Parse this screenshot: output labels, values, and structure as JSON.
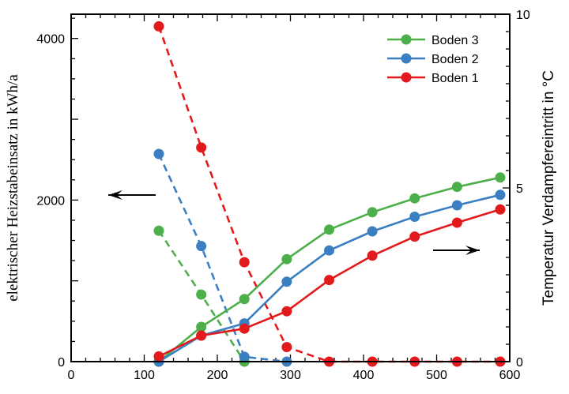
{
  "chart_data": {
    "type": "line",
    "xlim": [
      0,
      600
    ],
    "x_ticks": [
      0,
      100,
      200,
      300,
      400,
      500,
      600
    ],
    "y_left": {
      "label": "elektrischer Heizstabeinsatz in kWh/a",
      "lim": [
        0,
        4300
      ],
      "ticks": [
        0,
        2000,
        4000
      ]
    },
    "y_right": {
      "label": "Temperatur Verdampfereintritt in °C",
      "lim": [
        0,
        10
      ],
      "ticks": [
        0,
        5,
        10
      ]
    },
    "legend": {
      "position": "top-right",
      "entries": [
        "Boden 3",
        "Boden 2",
        "Boden 1"
      ]
    },
    "colors": {
      "Boden 1": "#e31a1c",
      "Boden 2": "#3a7fc1",
      "Boden 3": "#4daf4a"
    },
    "series": [
      {
        "name": "Boden 3",
        "kind": "heater",
        "axis": "left",
        "style": "dashed",
        "x": [
          120,
          178,
          237
        ],
        "values": [
          1620,
          830,
          0
        ]
      },
      {
        "name": "Boden 2",
        "kind": "heater",
        "axis": "left",
        "style": "dashed",
        "x": [
          120,
          178,
          237,
          295
        ],
        "values": [
          2570,
          1430,
          60,
          0
        ]
      },
      {
        "name": "Boden 1",
        "kind": "heater",
        "axis": "left",
        "style": "dashed",
        "x": [
          120,
          178,
          237,
          295,
          353,
          412,
          470,
          528,
          587
        ],
        "values": [
          4150,
          2650,
          1230,
          180,
          0,
          0,
          0,
          0,
          0
        ]
      },
      {
        "name": "Boden 3",
        "kind": "temperature",
        "axis": "right",
        "style": "solid",
        "x": [
          120,
          178,
          237,
          295,
          353,
          412,
          470,
          528,
          587
        ],
        "values": [
          0,
          1.0,
          1.8,
          2.95,
          3.8,
          4.3,
          4.7,
          5.03,
          5.3
        ]
      },
      {
        "name": "Boden 2",
        "kind": "temperature",
        "axis": "right",
        "style": "solid",
        "x": [
          120,
          178,
          237,
          295,
          353,
          412,
          470,
          528,
          587
        ],
        "values": [
          0,
          0.75,
          1.1,
          2.3,
          3.2,
          3.75,
          4.17,
          4.5,
          4.8
        ]
      },
      {
        "name": "Boden 1",
        "kind": "temperature",
        "axis": "right",
        "style": "solid",
        "x": [
          120,
          178,
          237,
          295,
          353,
          412,
          470,
          528,
          587
        ],
        "values": [
          0.15,
          0.75,
          0.95,
          1.45,
          2.35,
          3.05,
          3.6,
          4.0,
          4.38
        ]
      }
    ],
    "annotations": [
      {
        "type": "arrow",
        "direction": "left",
        "refers_to": "left axis"
      },
      {
        "type": "arrow",
        "direction": "right",
        "refers_to": "right axis"
      }
    ]
  }
}
